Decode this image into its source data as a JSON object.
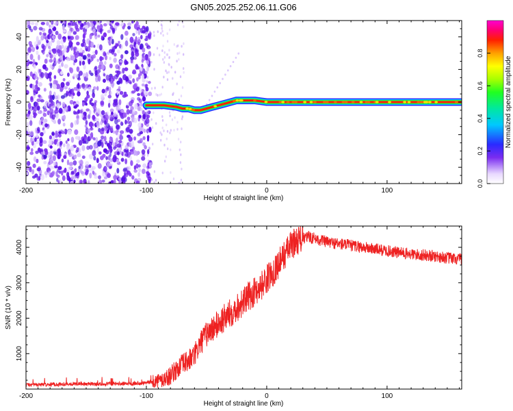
{
  "title": "GN05.2025.252.06.11.G06",
  "chart_data": [
    {
      "type": "heatmap",
      "name": "spectrogram",
      "xlabel": "Height of straight line (km)",
      "ylabel": "Frequency (Hz)",
      "xlim": [
        -200,
        162
      ],
      "ylim": [
        -50,
        50
      ],
      "xticks": [
        -200,
        -100,
        0,
        100
      ],
      "xtick_labels": [
        "-200",
        "-100",
        "0",
        "100"
      ],
      "yticks": [
        -40,
        -20,
        0,
        20,
        40
      ],
      "ytick_labels": [
        "-40",
        "-20",
        "0",
        "20",
        "40"
      ],
      "noise_region_x": [
        -200,
        -100
      ],
      "signal_trace": {
        "x": [
          -100,
          -85,
          -75,
          -70,
          -65,
          -60,
          -55,
          -50,
          -45,
          -40,
          -35,
          -30,
          -25,
          -20,
          -15,
          -10,
          -5,
          0,
          10,
          20,
          40,
          60,
          80,
          100,
          120,
          140,
          162
        ],
        "freq": [
          -2,
          -2,
          -3,
          -4,
          -4,
          -5,
          -5,
          -4,
          -3,
          -2,
          -1,
          0,
          1,
          1,
          1,
          1,
          0.5,
          0,
          0,
          0,
          0,
          0,
          0,
          0,
          0,
          0,
          0
        ]
      },
      "colorbar": {
        "label": "Normalized spectral amplitude",
        "range": [
          0,
          1
        ],
        "ticks": [
          0.0,
          0.2,
          0.4,
          0.6,
          0.8
        ],
        "tick_labels": [
          "0.0",
          "0.2",
          "0.4",
          "0.6",
          "0.8"
        ]
      }
    },
    {
      "type": "line",
      "name": "snr",
      "xlabel": "Height of straight line (km)",
      "ylabel": "SNR (10 * v/v)",
      "xlim": [
        -200,
        162
      ],
      "ylim": [
        0,
        4600
      ],
      "xticks": [
        -200,
        -100,
        0,
        100
      ],
      "xtick_labels": [
        "-200",
        "-100",
        "0",
        "100"
      ],
      "yticks": [
        1000,
        2000,
        3000,
        4000
      ],
      "ytick_labels": [
        "1000",
        "2000",
        "3000",
        "4000"
      ],
      "series": [
        {
          "name": "SNR",
          "color": "#ee2222",
          "x": [
            -200,
            -180,
            -160,
            -140,
            -120,
            -100,
            -90,
            -85,
            -80,
            -75,
            -70,
            -65,
            -60,
            -55,
            -50,
            -45,
            -40,
            -35,
            -30,
            -25,
            -20,
            -15,
            -10,
            -5,
            0,
            5,
            10,
            15,
            20,
            25,
            30,
            35,
            40,
            50,
            60,
            70,
            80,
            90,
            100,
            110,
            120,
            130,
            140,
            150,
            162
          ],
          "values": [
            120,
            130,
            150,
            140,
            150,
            180,
            220,
            280,
            380,
            550,
            700,
            800,
            950,
            1300,
            1550,
            1700,
            1850,
            2000,
            2150,
            2300,
            2450,
            2600,
            2750,
            2900,
            3100,
            3300,
            3550,
            3800,
            4050,
            4200,
            4250,
            4300,
            4250,
            4150,
            4100,
            4050,
            4000,
            3950,
            3900,
            3850,
            3800,
            3780,
            3750,
            3700,
            3650
          ]
        }
      ]
    }
  ]
}
